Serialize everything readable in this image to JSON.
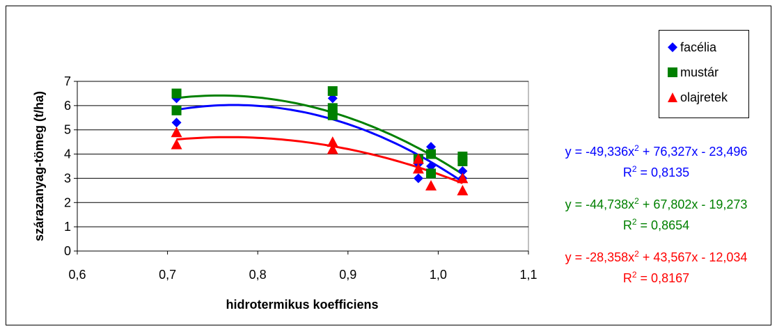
{
  "chart_data": {
    "type": "scatter",
    "xlabel": "hidrotermikus koefficiens",
    "ylabel": "szárazanyag-tömeg (t/ha)",
    "xlim": [
      0.6,
      1.1
    ],
    "ylim": [
      0,
      7
    ],
    "x_ticks": [
      "0,6",
      "0,7",
      "0,8",
      "0,9",
      "1,0",
      "1,1"
    ],
    "y_ticks": [
      "0",
      "1",
      "2",
      "3",
      "4",
      "5",
      "6",
      "7"
    ],
    "grid": "horizontal",
    "legend_position": "right",
    "series": [
      {
        "name": "facélia",
        "color": "#0000ff",
        "marker": "diamond",
        "points": [
          [
            0.71,
            6.3
          ],
          [
            0.71,
            5.3
          ],
          [
            0.883,
            6.3
          ],
          [
            0.883,
            5.6
          ],
          [
            0.978,
            3.0
          ],
          [
            0.978,
            3.6
          ],
          [
            0.992,
            4.3
          ],
          [
            0.992,
            3.5
          ],
          [
            1.027,
            3.3
          ],
          [
            1.027,
            3.0
          ]
        ],
        "trendline": {
          "a": -49.336,
          "b": 76.327,
          "c": -23.496
        },
        "equation": "y = -49,336x",
        "equation_tail": " + 76,327x - 23,496",
        "r2_label": "R",
        "r2_value": " = 0,8135"
      },
      {
        "name": "mustár",
        "color": "#008000",
        "marker": "square",
        "points": [
          [
            0.71,
            6.5
          ],
          [
            0.71,
            5.8
          ],
          [
            0.883,
            6.6
          ],
          [
            0.883,
            5.9
          ],
          [
            0.883,
            5.6
          ],
          [
            0.978,
            3.8
          ],
          [
            0.992,
            4.0
          ],
          [
            0.992,
            3.2
          ],
          [
            1.027,
            3.9
          ],
          [
            1.027,
            3.7
          ]
        ],
        "trendline": {
          "a": -44.738,
          "b": 67.802,
          "c": -19.273
        },
        "equation": "y = -44,738x",
        "equation_tail": " + 67,802x - 19,273",
        "r2_label": "R",
        "r2_value": " = 0,8654"
      },
      {
        "name": "olajretek",
        "color": "#ff0000",
        "marker": "triangle",
        "points": [
          [
            0.71,
            4.9
          ],
          [
            0.71,
            4.4
          ],
          [
            0.883,
            4.5
          ],
          [
            0.883,
            4.2
          ],
          [
            0.978,
            3.8
          ],
          [
            0.978,
            3.4
          ],
          [
            0.992,
            2.7
          ],
          [
            1.027,
            3.0
          ],
          [
            1.027,
            2.5
          ]
        ],
        "trendline": {
          "a": -28.358,
          "b": 43.567,
          "c": -12.034
        },
        "equation": "y = -28,358x",
        "equation_tail": " + 43,567x - 12,034",
        "r2_label": "R",
        "r2_value": " = 0,8167"
      }
    ]
  }
}
